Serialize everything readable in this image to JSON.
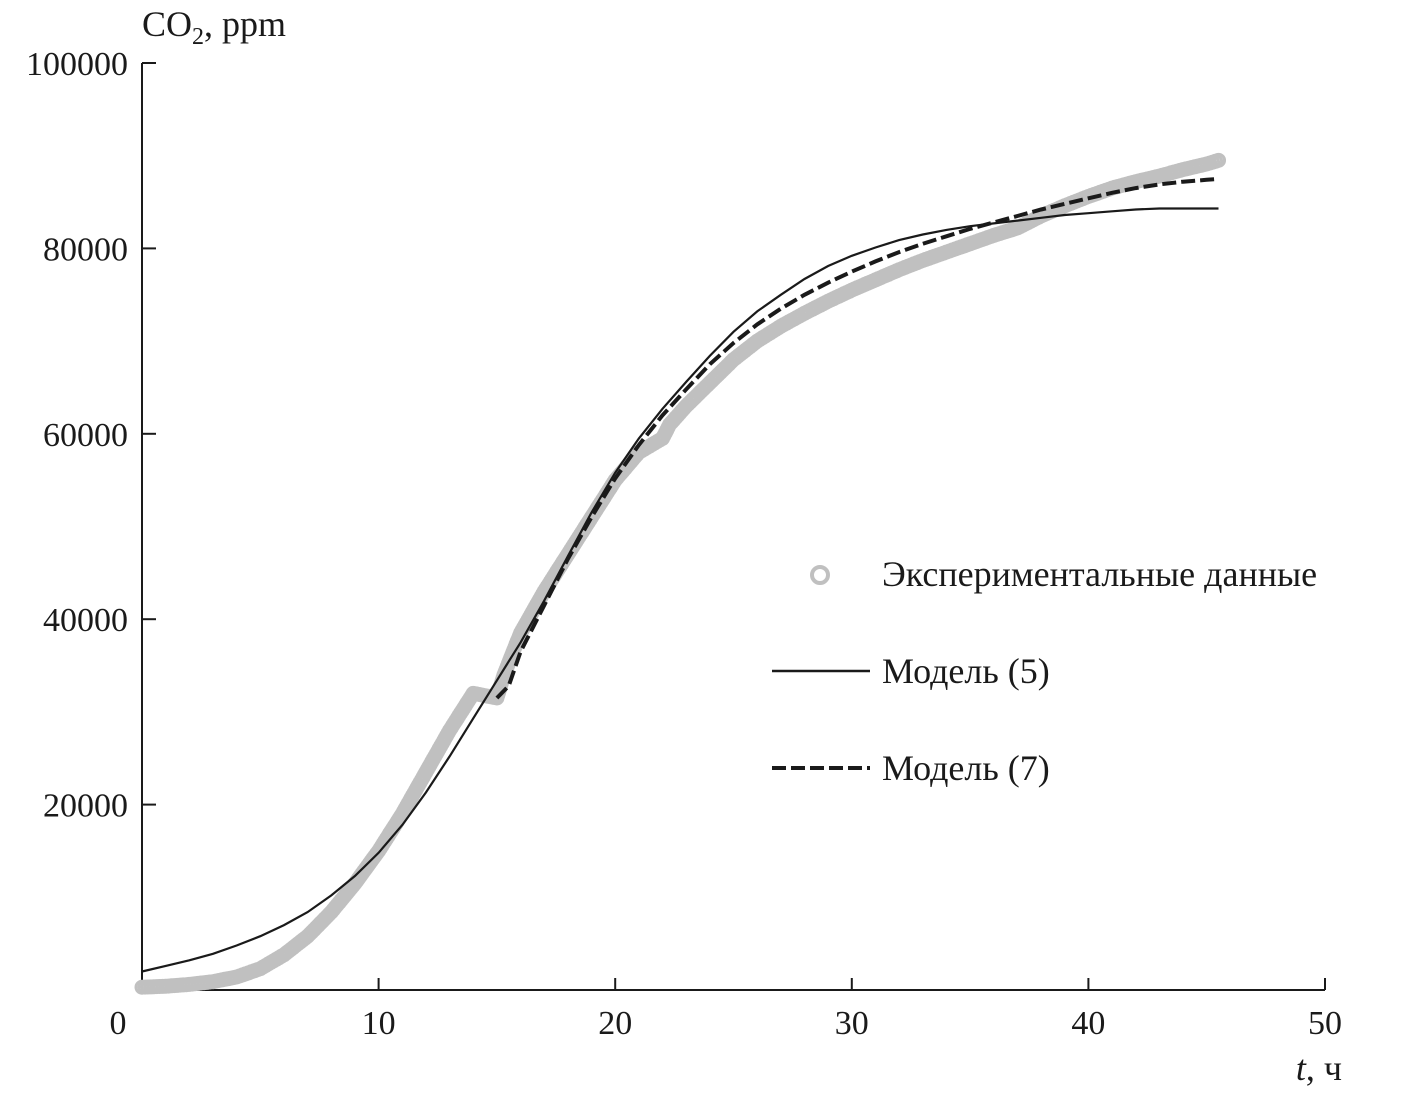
{
  "chart_data": {
    "type": "line",
    "ylabel_main": "CO",
    "ylabel_sub": "2",
    "ylabel_rest": ", ppm",
    "xlabel_var": "t",
    "xlabel_rest": ", ч",
    "xlim": [
      0,
      50
    ],
    "ylim": [
      0,
      100000
    ],
    "x_ticks": [
      0,
      10,
      20,
      30,
      40,
      50
    ],
    "y_ticks": [
      20000,
      40000,
      60000,
      80000,
      100000
    ],
    "x_tick_labels": [
      "0",
      "10",
      "20",
      "30",
      "40",
      "50"
    ],
    "y_tick_labels": [
      "20000",
      "40000",
      "60000",
      "80000",
      "100000"
    ],
    "grid": false,
    "legend_position": "right",
    "series": [
      {
        "name": "Экспериментальные данные",
        "style": "markers",
        "color": "#c0c0c0",
        "x": [
          0,
          1,
          2,
          3,
          4,
          5,
          6,
          7,
          8,
          9,
          10,
          11,
          12,
          13,
          14,
          15,
          15.3,
          16,
          17,
          18,
          19,
          20,
          21,
          22,
          22.3,
          23,
          24,
          25,
          26,
          27,
          28,
          29,
          30,
          31,
          32,
          33,
          34,
          35,
          36,
          37,
          38,
          39,
          40,
          41,
          42,
          43,
          44,
          45,
          45.5
        ],
        "y": [
          300,
          400,
          600,
          900,
          1400,
          2300,
          3800,
          5800,
          8400,
          11500,
          15000,
          19000,
          23500,
          28000,
          32000,
          31500,
          34000,
          38500,
          43000,
          47000,
          51000,
          55000,
          58000,
          59500,
          61000,
          63000,
          65500,
          68000,
          70000,
          71600,
          73000,
          74300,
          75500,
          76600,
          77700,
          78700,
          79600,
          80500,
          81400,
          82200,
          83500,
          84600,
          85600,
          86500,
          87200,
          87800,
          88500,
          89100,
          89500
        ]
      },
      {
        "name": "Модель (5)",
        "style": "solid",
        "color": "#1a1a1a",
        "x": [
          0,
          1,
          2,
          3,
          4,
          5,
          6,
          7,
          8,
          9,
          10,
          11,
          12,
          13,
          14,
          15,
          16,
          17,
          18,
          19,
          20,
          21,
          22,
          23,
          24,
          25,
          26,
          27,
          28,
          29,
          30,
          31,
          32,
          33,
          34,
          35,
          36,
          37,
          38,
          39,
          40,
          41,
          42,
          43,
          44,
          45,
          45.5
        ],
        "y": [
          2000,
          2600,
          3200,
          3900,
          4800,
          5800,
          7000,
          8400,
          10200,
          12300,
          14800,
          17800,
          21300,
          25200,
          29300,
          33400,
          37500,
          42000,
          46800,
          51500,
          55800,
          59500,
          62700,
          65600,
          68400,
          71000,
          73200,
          75000,
          76700,
          78100,
          79200,
          80100,
          80900,
          81500,
          82000,
          82400,
          82700,
          83000,
          83300,
          83600,
          83800,
          84000,
          84200,
          84300,
          84300,
          84300,
          84300
        ]
      },
      {
        "name": "Модель (7)",
        "style": "dashed",
        "color": "#1a1a1a",
        "x": [
          15,
          15.5,
          16,
          17,
          18,
          19,
          20,
          21,
          22,
          23,
          24,
          25,
          26,
          27,
          28,
          29,
          30,
          31,
          32,
          33,
          34,
          35,
          36,
          37,
          38,
          39,
          40,
          41,
          42,
          43,
          44,
          45,
          45.5
        ],
        "y": [
          31500,
          32800,
          36500,
          41500,
          46500,
          51000,
          55200,
          58800,
          62000,
          64800,
          67500,
          69800,
          71800,
          73500,
          75000,
          76300,
          77500,
          78600,
          79600,
          80500,
          81300,
          82100,
          82800,
          83500,
          84200,
          84800,
          85400,
          86000,
          86500,
          86900,
          87200,
          87400,
          87500
        ]
      }
    ]
  }
}
